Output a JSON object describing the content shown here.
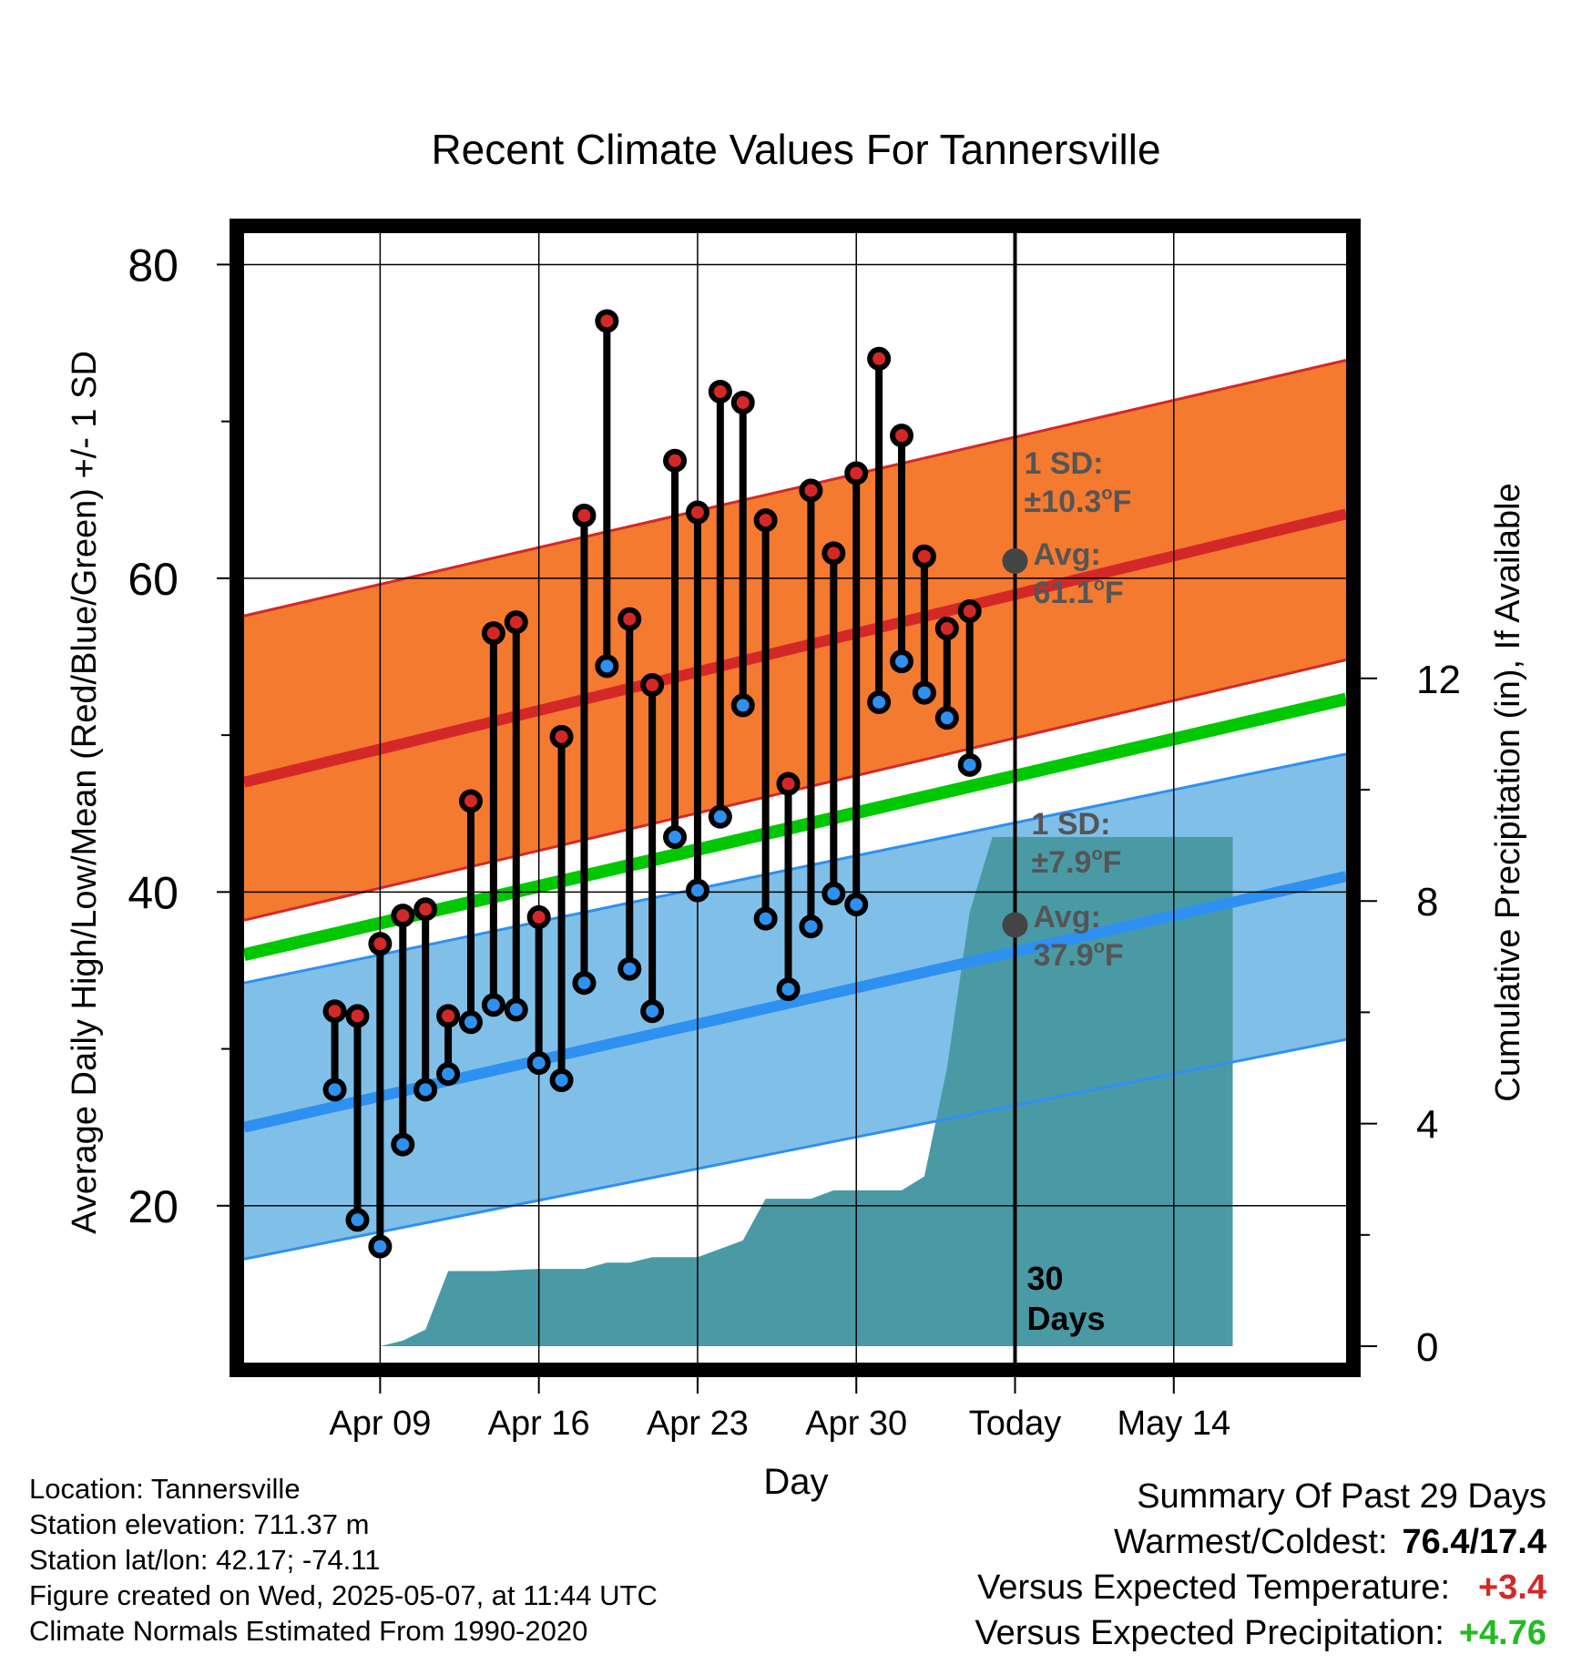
{
  "chart_data": {
    "type": "line",
    "title": "Recent Climate Values For Tannersville",
    "xlabel": "Day",
    "ylabel": "Average Daily High/Low/Mean (Red/Blue/Green) +/- 1 SD",
    "y2label": "Cumulative Precipitation (in), If Available",
    "ylim": [
      10,
      82
    ],
    "y2lim": [
      0,
      20
    ],
    "y_ticks": [
      "80",
      "60",
      "40",
      "20"
    ],
    "y2_ticks": [
      "12",
      "8",
      "4",
      "0"
    ],
    "x_range_days": [
      -34,
      14.6
    ],
    "x_tick_labels": [
      {
        "day": -28,
        "label": "Apr 09"
      },
      {
        "day": -21,
        "label": "Apr 16"
      },
      {
        "day": -14,
        "label": "Apr 23"
      },
      {
        "day": -7,
        "label": "Apr 30"
      },
      {
        "day": 0,
        "label": "Today"
      },
      {
        "day": 7,
        "label": "May 14"
      }
    ],
    "grid": true,
    "series": [
      {
        "name": "High",
        "color": "#d42828"
      },
      {
        "name": "Low",
        "color": "#2e90f0"
      },
      {
        "name": "Mean",
        "color": "#00c800"
      }
    ],
    "normal_high": {
      "mean_start": 47.0,
      "mean_end": 64.1,
      "upper_start": 57.6,
      "upper_end": 73.9,
      "lower_start": 38.2,
      "lower_end": 54.8
    },
    "normal_low": {
      "mean_start": 25.0,
      "mean_end": 41.0,
      "upper_start": 34.2,
      "upper_end": 48.8,
      "lower_start": 16.6,
      "lower_end": 30.6
    },
    "normal_mean": {
      "start": 36.0,
      "end": 52.3
    },
    "annotations": {
      "high_sd": {
        "line1": "1 SD:",
        "line2": "±10.3",
        "unit": "F"
      },
      "high_avg": {
        "line1": "Avg:",
        "value": "61.1",
        "unit": "F",
        "y": 61.1
      },
      "low_sd": {
        "line1": "1 SD:",
        "line2": "±7.9",
        "unit": "F"
      },
      "low_avg": {
        "line1": "Avg:",
        "value": "37.9",
        "unit": "F",
        "y": 37.9
      },
      "days": {
        "line1": "30",
        "line2": "Days"
      },
      "degree_symbol": "o"
    },
    "daily": [
      {
        "day": -30,
        "high": 32.4,
        "low": 27.4
      },
      {
        "day": -29,
        "high": 32.1,
        "low": 19.1
      },
      {
        "day": -28,
        "high": 36.7,
        "low": 17.4
      },
      {
        "day": -27,
        "high": 38.5,
        "low": 23.9
      },
      {
        "day": -26,
        "high": 38.9,
        "low": 27.4
      },
      {
        "day": -25,
        "high": 32.1,
        "low": 28.4
      },
      {
        "day": -24,
        "high": 45.8,
        "low": 31.7
      },
      {
        "day": -23,
        "high": 56.5,
        "low": 32.8
      },
      {
        "day": -22,
        "high": 57.2,
        "low": 32.5
      },
      {
        "day": -21,
        "high": 38.4,
        "low": 29.1
      },
      {
        "day": -20,
        "high": 49.9,
        "low": 28.0
      },
      {
        "day": -19,
        "high": 64.0,
        "low": 34.2
      },
      {
        "day": -18,
        "high": 76.4,
        "low": 54.4
      },
      {
        "day": -17,
        "high": 57.4,
        "low": 35.1
      },
      {
        "day": -16,
        "high": 53.2,
        "low": 32.4
      },
      {
        "day": -15,
        "high": 67.5,
        "low": 43.5
      },
      {
        "day": -14,
        "high": 64.2,
        "low": 40.1
      },
      {
        "day": -13,
        "high": 71.9,
        "low": 44.8
      },
      {
        "day": -12,
        "high": 71.2,
        "low": 51.9
      },
      {
        "day": -11,
        "high": 63.7,
        "low": 38.3
      },
      {
        "day": -10,
        "high": 46.9,
        "low": 33.8
      },
      {
        "day": -9,
        "high": 65.6,
        "low": 37.8
      },
      {
        "day": -8,
        "high": 61.6,
        "low": 39.9
      },
      {
        "day": -7,
        "high": 66.7,
        "low": 39.2
      },
      {
        "day": -6,
        "high": 74.0,
        "low": 52.1
      },
      {
        "day": -5,
        "high": 69.1,
        "low": 54.7
      },
      {
        "day": -4,
        "high": 61.4,
        "low": 52.7
      },
      {
        "day": -3,
        "high": 56.8,
        "low": 51.1
      },
      {
        "day": -2,
        "high": 57.9,
        "low": 48.1
      }
    ],
    "precip_cumulative": [
      {
        "day": -28,
        "value": 0.0
      },
      {
        "day": -27,
        "value": 0.1
      },
      {
        "day": -26,
        "value": 0.3
      },
      {
        "day": -25,
        "value": 1.35
      },
      {
        "day": -24,
        "value": 1.35
      },
      {
        "day": -23,
        "value": 1.35
      },
      {
        "day": -22,
        "value": 1.37
      },
      {
        "day": -21,
        "value": 1.39
      },
      {
        "day": -20,
        "value": 1.39
      },
      {
        "day": -19,
        "value": 1.39
      },
      {
        "day": -18,
        "value": 1.5
      },
      {
        "day": -17,
        "value": 1.5
      },
      {
        "day": -16,
        "value": 1.6
      },
      {
        "day": -15,
        "value": 1.6
      },
      {
        "day": -14,
        "value": 1.6
      },
      {
        "day": -13,
        "value": 1.75
      },
      {
        "day": -12,
        "value": 1.9
      },
      {
        "day": -11,
        "value": 2.65
      },
      {
        "day": -10,
        "value": 2.65
      },
      {
        "day": -9,
        "value": 2.65
      },
      {
        "day": -8,
        "value": 2.8
      },
      {
        "day": -7,
        "value": 2.8
      },
      {
        "day": -6,
        "value": 2.8
      },
      {
        "day": -5,
        "value": 2.8
      },
      {
        "day": -4,
        "value": 3.05
      },
      {
        "day": -3,
        "value": 5.0
      },
      {
        "day": -2,
        "value": 7.8
      },
      {
        "day": -1,
        "value": 9.15
      },
      {
        "day": 0,
        "value": 9.15
      },
      {
        "day": 9.6,
        "value": 9.15
      }
    ],
    "colors": {
      "high_band": "#f47a30",
      "high_band_edge": "#d42828",
      "high_mean_line": "#d42828",
      "low_band": "#80c0e8",
      "low_band_edge": "#2e90f0",
      "low_mean_line": "#2e90f0",
      "mean_line": "#00c800",
      "precip": "#4a9aa5",
      "annotation_text": "#555555",
      "high_marker": "#d42828",
      "low_marker": "#2e90f0"
    }
  },
  "footer": {
    "location": "Location: Tannersville",
    "elevation": "Station elevation: 711.37 m",
    "latlon": "Station lat/lon: 42.17; -74.11",
    "created": "Figure created on Wed, 2025-05-07, at 11:44 UTC",
    "normals": "Climate Normals Estimated From 1990-2020"
  },
  "summary": {
    "title": "Summary Of Past 29 Days",
    "warmest_coldest_label": "Warmest/Coldest:",
    "warmest_coldest_value": "76.4/17.4",
    "temp_label": "Versus Expected Temperature:",
    "temp_value": "+3.4",
    "temp_color": "#d42828",
    "precip_label": "Versus Expected Precipitation:",
    "precip_value": "+4.76",
    "precip_color": "#22bb22"
  }
}
